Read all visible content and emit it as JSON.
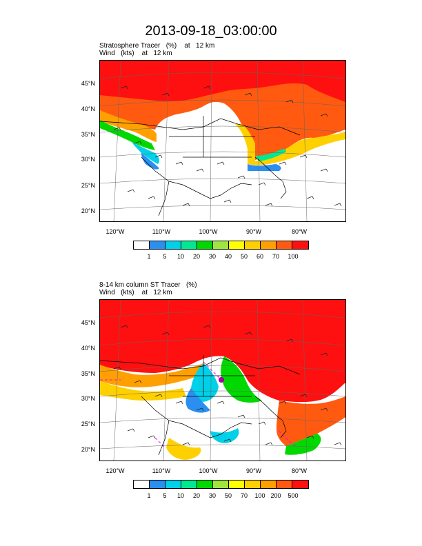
{
  "title": "2013-09-18_03:00:00",
  "panel1": {
    "line1": "Stratosphere Tracer   (%)    at   12 km",
    "line2": "Wind   (kts)    at   12 km",
    "lat_labels": [
      "45°N",
      "40°N",
      "35°N",
      "30°N",
      "25°N",
      "20°N"
    ],
    "lon_labels": [
      "120°W",
      "110°W",
      "100°W",
      "90°W",
      "80°W"
    ],
    "colorbar": {
      "colors": [
        "#ffffff",
        "#2a8ff0",
        "#00d0e8",
        "#00e890",
        "#00d800",
        "#a0e640",
        "#ffff00",
        "#ffd000",
        "#ffa000",
        "#ff5a10",
        "#ff1010"
      ],
      "labels": [
        "1",
        "5",
        "10",
        "20",
        "30",
        "40",
        "50",
        "60",
        "70",
        "100"
      ]
    }
  },
  "panel2": {
    "line1": "8-14 km column ST Tracer   (%)",
    "line2": "Wind   (kts)    at   12 km",
    "lat_labels": [
      "45°N",
      "40°N",
      "35°N",
      "30°N",
      "25°N",
      "20°N"
    ],
    "lon_labels": [
      "120°W",
      "110°W",
      "100°W",
      "90°W",
      "80°W"
    ],
    "colorbar": {
      "colors": [
        "#ffffff",
        "#2a8ff0",
        "#00d0e8",
        "#00e890",
        "#00d800",
        "#a0e640",
        "#ffff00",
        "#ffd000",
        "#ffa000",
        "#ff5a10",
        "#ff1010"
      ],
      "labels": [
        "1",
        "5",
        "10",
        "20",
        "30",
        "50",
        "70",
        "100",
        "200",
        "500"
      ]
    }
  }
}
